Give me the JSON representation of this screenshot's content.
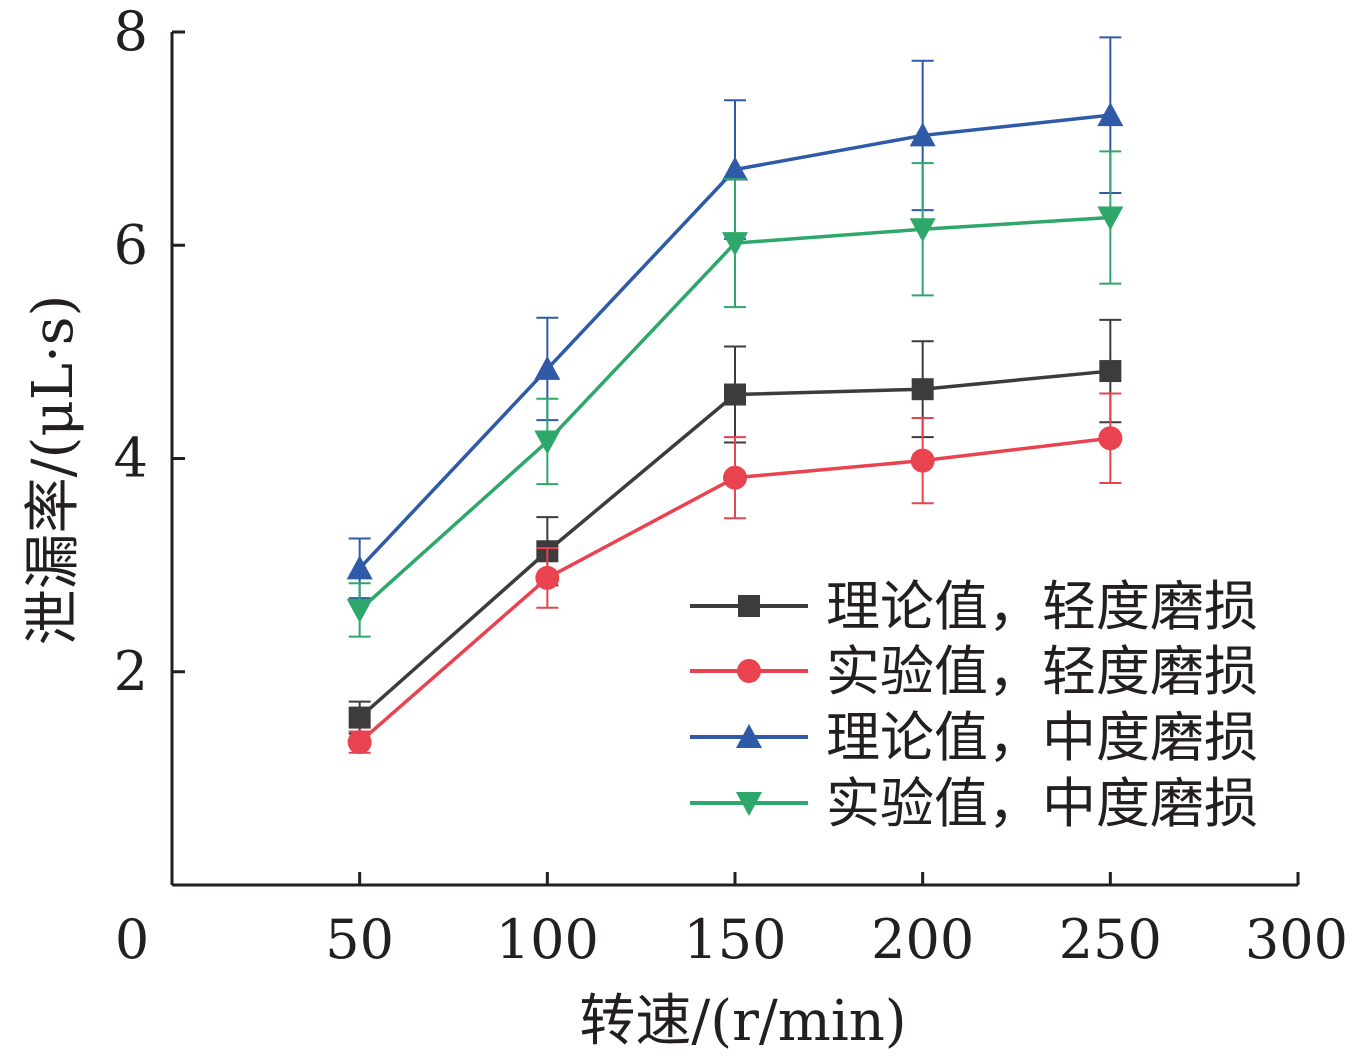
{
  "chart_data": {
    "type": "line",
    "title": "",
    "xlabel": "转速/(r/min)",
    "ylabel": "泄漏率/(μL·s)",
    "xlim": [
      0,
      300
    ],
    "ylim": [
      0,
      8
    ],
    "xticks": [
      0,
      50,
      100,
      150,
      200,
      250,
      300
    ],
    "yticks": [
      2,
      4,
      6,
      8
    ],
    "y_zero_label_on_x_axis": "0",
    "grid": false,
    "legend_position": "bottom-right",
    "error_bars": true,
    "series": [
      {
        "name": "理论值，轻度磨损",
        "color": "#3d3b3c",
        "marker": "square",
        "x": [
          50,
          100,
          150,
          200,
          250
        ],
        "y": [
          1.57,
          3.13,
          4.6,
          4.65,
          4.82
        ],
        "err": [
          0.15,
          0.32,
          0.45,
          0.45,
          0.48
        ]
      },
      {
        "name": "实验值，轻度磨损",
        "color": "#e8434e",
        "marker": "circle",
        "x": [
          50,
          100,
          150,
          200,
          250
        ],
        "y": [
          1.34,
          2.88,
          3.82,
          3.98,
          4.19
        ],
        "err": [
          0.1,
          0.28,
          0.38,
          0.4,
          0.42
        ]
      },
      {
        "name": "理论值，中度磨损",
        "color": "#2f5aa7",
        "marker": "triangle-up",
        "x": [
          50,
          100,
          150,
          200,
          250
        ],
        "y": [
          2.97,
          4.84,
          6.71,
          7.03,
          7.22
        ],
        "err": [
          0.28,
          0.48,
          0.65,
          0.7,
          0.73
        ]
      },
      {
        "name": "实验值，中度磨损",
        "color": "#2ea76a",
        "marker": "triangle-down",
        "x": [
          50,
          100,
          150,
          200,
          250
        ],
        "y": [
          2.58,
          4.16,
          6.02,
          6.15,
          6.26
        ],
        "err": [
          0.25,
          0.4,
          0.6,
          0.62,
          0.62
        ]
      }
    ]
  }
}
